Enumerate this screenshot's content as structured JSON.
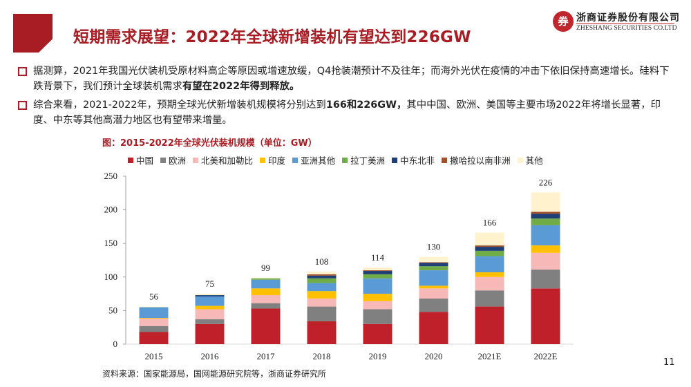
{
  "header": {
    "title": "短期需求展望：2022年全球新增装机有望达到226GW",
    "logo_cn": "浙商证券股份有限公司",
    "logo_en": "ZHESHANG SECURITIES CO.LTD",
    "logo_mark": "券"
  },
  "bullets": [
    {
      "text_plain": "据测算，2021年我国光伏装机受原材料高企等原因或增速放缓，Q4抢装潮预计不及往年；而海外光伏在疫情的冲击下依旧保持高速增长。硅料下跌背景下，我们预计全球装机需求",
      "text_bold": "有望在2022年得到释放。",
      "text_after": ""
    },
    {
      "text_plain": "综合来看，2021-2022年，预期全球光伏新增装机规模将分别达到",
      "text_bold": "166和226GW，",
      "text_after": "其中中国、欧洲、美国等主要市场2022年将增长显著，印度、中东等其他高潜力地区也有望带来增量。"
    }
  ],
  "chart_data": {
    "type": "bar",
    "stacked": true,
    "title": "图：2015-2022年全球光伏装机规模（单位：GW）",
    "xlabel": "",
    "ylabel": "",
    "ylim": [
      0,
      250
    ],
    "yticks": [
      0,
      50,
      100,
      150,
      200,
      250
    ],
    "grid": false,
    "legend_position": "top",
    "categories": [
      "2015",
      "2016",
      "2017",
      "2018",
      "2019",
      "2020",
      "2021E",
      "2022E"
    ],
    "totals": [
      56,
      75,
      99,
      108,
      114,
      130,
      166,
      226
    ],
    "series": [
      {
        "name": "中国",
        "color": "#c0202a",
        "values": [
          18,
          30,
          53,
          34,
          30,
          48,
          56,
          83
        ]
      },
      {
        "name": "欧洲",
        "color": "#808080",
        "values": [
          9,
          7,
          8,
          22,
          22,
          20,
          24,
          28
        ]
      },
      {
        "name": "北美和加勒比",
        "color": "#f7b8b8",
        "values": [
          11,
          15,
          12,
          12,
          12,
          15,
          20,
          25
        ]
      },
      {
        "name": "印度",
        "color": "#ffc000",
        "values": [
          1,
          5,
          10,
          11,
          11,
          4,
          7,
          11
        ]
      },
      {
        "name": "亚洲其他",
        "color": "#5b9bd5",
        "values": [
          16,
          14,
          13,
          12,
          23,
          23,
          24,
          30
        ]
      },
      {
        "name": "拉丁美洲",
        "color": "#70ad47",
        "values": [
          0,
          0,
          2,
          7,
          6,
          6,
          8,
          10
        ]
      },
      {
        "name": "中东北非",
        "color": "#1f3f77",
        "values": [
          0,
          2,
          0,
          4,
          5,
          5,
          6,
          7
        ]
      },
      {
        "name": "撒哈拉以南非洲",
        "color": "#a0522d",
        "values": [
          0,
          0,
          0,
          2,
          1,
          1,
          2,
          3
        ]
      },
      {
        "name": "其他",
        "color": "#fff2cc",
        "values": [
          1,
          2,
          1,
          4,
          4,
          8,
          19,
          29
        ]
      }
    ]
  },
  "footer": {
    "source": "资料来源：国家能源局，国网能源研究院等，浙商证券研究所",
    "page_number": "11"
  }
}
